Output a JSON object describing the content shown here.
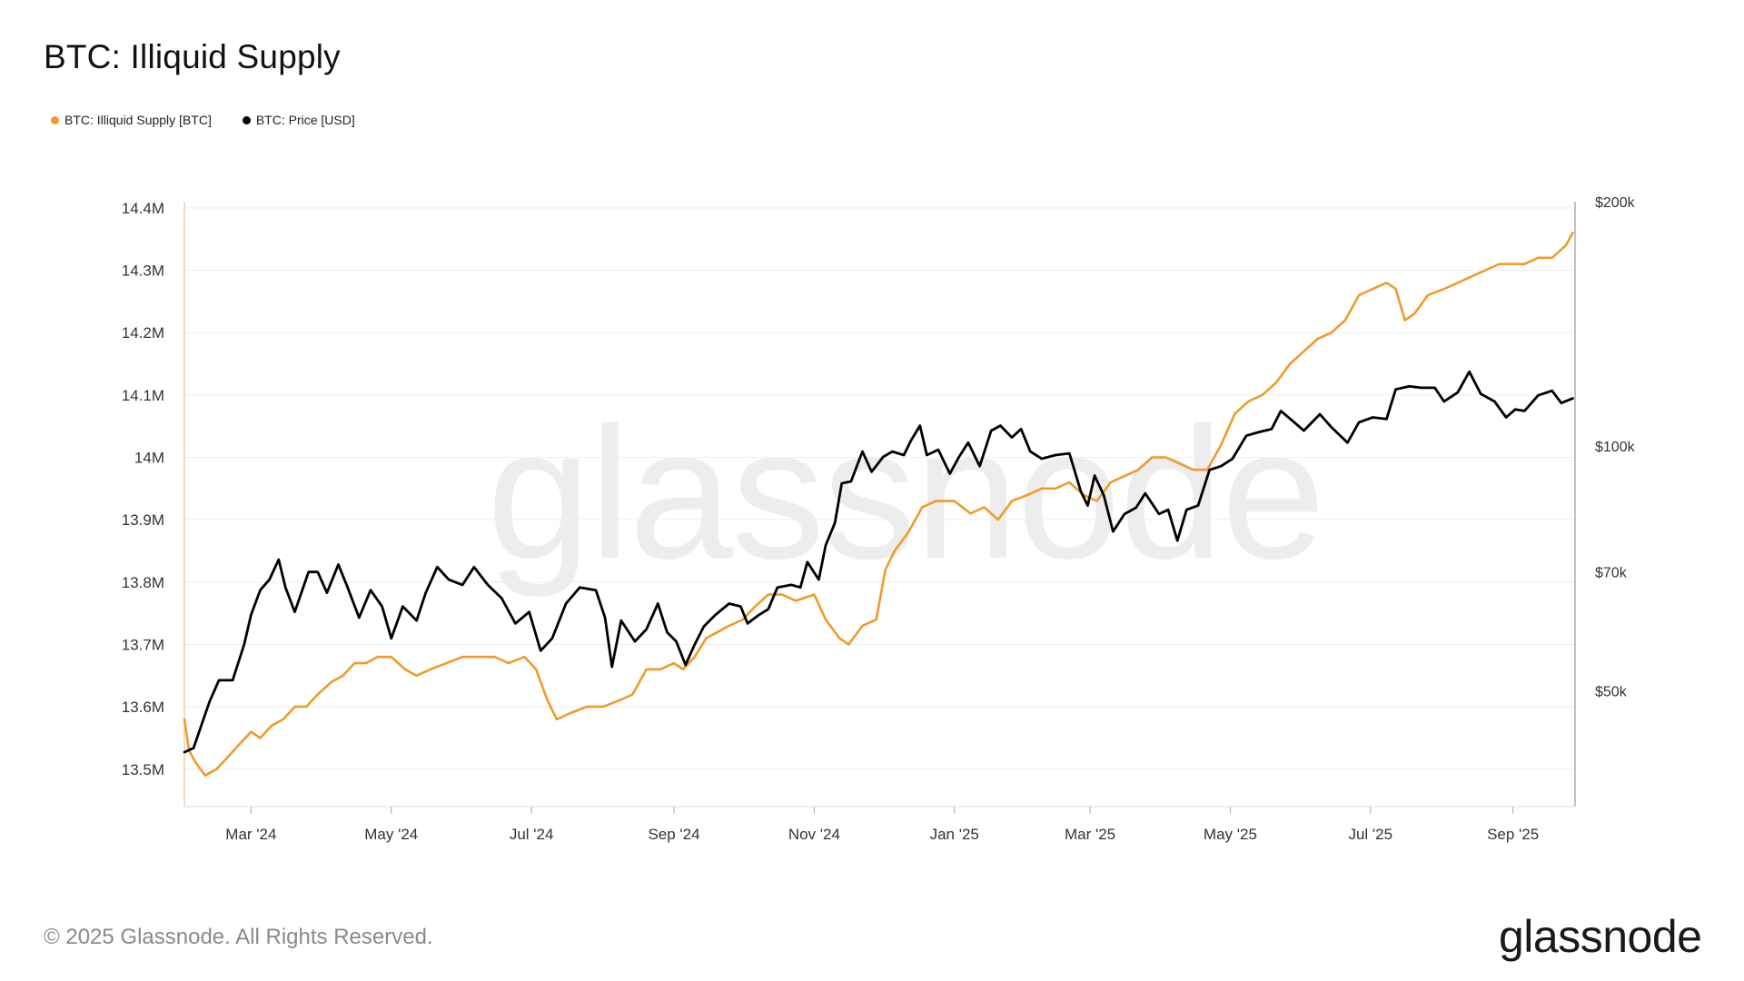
{
  "title": "BTC: Illiquid Supply",
  "copyright": "© 2025 Glassnode. All Rights Reserved.",
  "brand": "glassnode",
  "watermark": "glassnode",
  "colors": {
    "supply": "#f09a2c",
    "price": "#000000",
    "grid": "#eeeeee",
    "axis": "#999999"
  },
  "chart_data": {
    "type": "line",
    "title": "BTC: Illiquid Supply",
    "legend_position": "top-left",
    "grid": true,
    "x_start": "2024-02-01",
    "x_end": "2025-09-28",
    "x_ticks": [
      {
        "date": "2024-03-01",
        "label": "Mar '24"
      },
      {
        "date": "2024-05-01",
        "label": "May '24"
      },
      {
        "date": "2024-07-01",
        "label": "Jul '24"
      },
      {
        "date": "2024-09-01",
        "label": "Sep '24"
      },
      {
        "date": "2024-11-01",
        "label": "Nov '24"
      },
      {
        "date": "2025-01-01",
        "label": "Jan '25"
      },
      {
        "date": "2025-03-01",
        "label": "Mar '25"
      },
      {
        "date": "2025-05-01",
        "label": "May '25"
      },
      {
        "date": "2025-07-01",
        "label": "Jul '25"
      },
      {
        "date": "2025-09-01",
        "label": "Sep '25"
      }
    ],
    "y_left": {
      "range": [
        13.44,
        14.41
      ],
      "ticks": [
        {
          "value": 13.5,
          "label": "13.5M"
        },
        {
          "value": 13.6,
          "label": "13.6M"
        },
        {
          "value": 13.7,
          "label": "13.7M"
        },
        {
          "value": 13.8,
          "label": "13.8M"
        },
        {
          "value": 13.9,
          "label": "13.9M"
        },
        {
          "value": 14.0,
          "label": "14M"
        },
        {
          "value": 14.1,
          "label": "14.1M"
        },
        {
          "value": 14.2,
          "label": "14.2M"
        },
        {
          "value": 14.3,
          "label": "14.3M"
        },
        {
          "value": 14.4,
          "label": "14.4M"
        }
      ]
    },
    "y_right": {
      "scale": "log",
      "range": [
        36000,
        200000
      ],
      "ticks": [
        {
          "value": 50000,
          "label": "$50k"
        },
        {
          "value": 70000,
          "label": "$70k"
        },
        {
          "value": 100000,
          "label": "$100k"
        },
        {
          "value": 200000,
          "label": "$200k"
        }
      ]
    },
    "series": [
      {
        "name": "BTC: Illiquid Supply [BTC]",
        "axis": "left",
        "color": "#f09a2c",
        "points": [
          [
            "2024-02-01",
            13.58
          ],
          [
            "2024-02-03",
            13.53
          ],
          [
            "2024-02-06",
            13.51
          ],
          [
            "2024-02-10",
            13.49
          ],
          [
            "2024-02-15",
            13.5
          ],
          [
            "2024-02-20",
            13.52
          ],
          [
            "2024-02-25",
            13.54
          ],
          [
            "2024-03-01",
            13.56
          ],
          [
            "2024-03-05",
            13.55
          ],
          [
            "2024-03-10",
            13.57
          ],
          [
            "2024-03-15",
            13.58
          ],
          [
            "2024-03-20",
            13.6
          ],
          [
            "2024-03-25",
            13.6
          ],
          [
            "2024-03-30",
            13.62
          ],
          [
            "2024-04-05",
            13.64
          ],
          [
            "2024-04-10",
            13.65
          ],
          [
            "2024-04-15",
            13.67
          ],
          [
            "2024-04-20",
            13.67
          ],
          [
            "2024-04-25",
            13.68
          ],
          [
            "2024-05-01",
            13.68
          ],
          [
            "2024-05-07",
            13.66
          ],
          [
            "2024-05-12",
            13.65
          ],
          [
            "2024-05-18",
            13.66
          ],
          [
            "2024-05-25",
            13.67
          ],
          [
            "2024-06-01",
            13.68
          ],
          [
            "2024-06-08",
            13.68
          ],
          [
            "2024-06-15",
            13.68
          ],
          [
            "2024-06-21",
            13.67
          ],
          [
            "2024-06-28",
            13.68
          ],
          [
            "2024-07-03",
            13.66
          ],
          [
            "2024-07-08",
            13.61
          ],
          [
            "2024-07-12",
            13.58
          ],
          [
            "2024-07-18",
            13.59
          ],
          [
            "2024-07-25",
            13.6
          ],
          [
            "2024-08-01",
            13.6
          ],
          [
            "2024-08-08",
            13.61
          ],
          [
            "2024-08-14",
            13.62
          ],
          [
            "2024-08-20",
            13.66
          ],
          [
            "2024-08-26",
            13.66
          ],
          [
            "2024-09-01",
            13.67
          ],
          [
            "2024-09-05",
            13.66
          ],
          [
            "2024-09-10",
            13.68
          ],
          [
            "2024-09-15",
            13.71
          ],
          [
            "2024-09-20",
            13.72
          ],
          [
            "2024-09-25",
            13.73
          ],
          [
            "2024-10-01",
            13.74
          ],
          [
            "2024-10-06",
            13.76
          ],
          [
            "2024-10-12",
            13.78
          ],
          [
            "2024-10-18",
            13.78
          ],
          [
            "2024-10-24",
            13.77
          ],
          [
            "2024-11-01",
            13.78
          ],
          [
            "2024-11-06",
            13.74
          ],
          [
            "2024-11-12",
            13.71
          ],
          [
            "2024-11-16",
            13.7
          ],
          [
            "2024-11-22",
            13.73
          ],
          [
            "2024-11-28",
            13.74
          ],
          [
            "2024-12-02",
            13.82
          ],
          [
            "2024-12-06",
            13.85
          ],
          [
            "2024-12-12",
            13.88
          ],
          [
            "2024-12-18",
            13.92
          ],
          [
            "2024-12-24",
            13.93
          ],
          [
            "2025-01-01",
            13.93
          ],
          [
            "2025-01-08",
            13.91
          ],
          [
            "2025-01-14",
            13.92
          ],
          [
            "2025-01-20",
            13.9
          ],
          [
            "2025-01-26",
            13.93
          ],
          [
            "2025-02-02",
            13.94
          ],
          [
            "2025-02-08",
            13.95
          ],
          [
            "2025-02-14",
            13.95
          ],
          [
            "2025-02-20",
            13.96
          ],
          [
            "2025-02-26",
            13.94
          ],
          [
            "2025-03-04",
            13.93
          ],
          [
            "2025-03-10",
            13.96
          ],
          [
            "2025-03-16",
            13.97
          ],
          [
            "2025-03-22",
            13.98
          ],
          [
            "2025-03-28",
            14.0
          ],
          [
            "2025-04-03",
            14.0
          ],
          [
            "2025-04-09",
            13.99
          ],
          [
            "2025-04-15",
            13.98
          ],
          [
            "2025-04-21",
            13.98
          ],
          [
            "2025-04-27",
            14.02
          ],
          [
            "2025-05-03",
            14.07
          ],
          [
            "2025-05-09",
            14.09
          ],
          [
            "2025-05-15",
            14.1
          ],
          [
            "2025-05-21",
            14.12
          ],
          [
            "2025-05-27",
            14.15
          ],
          [
            "2025-06-02",
            14.17
          ],
          [
            "2025-06-08",
            14.19
          ],
          [
            "2025-06-14",
            14.2
          ],
          [
            "2025-06-20",
            14.22
          ],
          [
            "2025-06-26",
            14.26
          ],
          [
            "2025-07-02",
            14.27
          ],
          [
            "2025-07-08",
            14.28
          ],
          [
            "2025-07-12",
            14.27
          ],
          [
            "2025-07-16",
            14.22
          ],
          [
            "2025-07-20",
            14.23
          ],
          [
            "2025-07-26",
            14.26
          ],
          [
            "2025-08-02",
            14.27
          ],
          [
            "2025-08-08",
            14.28
          ],
          [
            "2025-08-14",
            14.29
          ],
          [
            "2025-08-20",
            14.3
          ],
          [
            "2025-08-26",
            14.31
          ],
          [
            "2025-09-01",
            14.31
          ],
          [
            "2025-09-06",
            14.31
          ],
          [
            "2025-09-12",
            14.32
          ],
          [
            "2025-09-18",
            14.32
          ],
          [
            "2025-09-24",
            14.34
          ],
          [
            "2025-09-27",
            14.36
          ]
        ]
      },
      {
        "name": "BTC: Price [USD]",
        "axis": "right",
        "color": "#000000",
        "points": [
          [
            "2024-02-01",
            42000
          ],
          [
            "2024-02-05",
            42500
          ],
          [
            "2024-02-08",
            45000
          ],
          [
            "2024-02-12",
            48500
          ],
          [
            "2024-02-16",
            51500
          ],
          [
            "2024-02-22",
            51500
          ],
          [
            "2024-02-27",
            57000
          ],
          [
            "2024-03-01",
            62000
          ],
          [
            "2024-03-05",
            66500
          ],
          [
            "2024-03-09",
            68500
          ],
          [
            "2024-03-13",
            72500
          ],
          [
            "2024-03-16",
            67000
          ],
          [
            "2024-03-20",
            62500
          ],
          [
            "2024-03-26",
            70000
          ],
          [
            "2024-03-30",
            70000
          ],
          [
            "2024-04-03",
            66000
          ],
          [
            "2024-04-08",
            71500
          ],
          [
            "2024-04-12",
            67000
          ],
          [
            "2024-04-17",
            61500
          ],
          [
            "2024-04-22",
            66500
          ],
          [
            "2024-04-27",
            63500
          ],
          [
            "2024-05-01",
            58000
          ],
          [
            "2024-05-06",
            63500
          ],
          [
            "2024-05-12",
            61000
          ],
          [
            "2024-05-16",
            66000
          ],
          [
            "2024-05-21",
            71000
          ],
          [
            "2024-05-26",
            68500
          ],
          [
            "2024-06-01",
            67500
          ],
          [
            "2024-06-06",
            71000
          ],
          [
            "2024-06-12",
            67500
          ],
          [
            "2024-06-18",
            65000
          ],
          [
            "2024-06-24",
            60500
          ],
          [
            "2024-06-30",
            62500
          ],
          [
            "2024-07-05",
            56000
          ],
          [
            "2024-07-10",
            58000
          ],
          [
            "2024-07-16",
            64000
          ],
          [
            "2024-07-22",
            67000
          ],
          [
            "2024-07-29",
            66500
          ],
          [
            "2024-08-02",
            61500
          ],
          [
            "2024-08-05",
            53500
          ],
          [
            "2024-08-09",
            61000
          ],
          [
            "2024-08-15",
            57500
          ],
          [
            "2024-08-20",
            59500
          ],
          [
            "2024-08-25",
            64000
          ],
          [
            "2024-08-29",
            59000
          ],
          [
            "2024-09-02",
            57500
          ],
          [
            "2024-09-06",
            53800
          ],
          [
            "2024-09-10",
            57000
          ],
          [
            "2024-09-14",
            60000
          ],
          [
            "2024-09-19",
            62000
          ],
          [
            "2024-09-25",
            64000
          ],
          [
            "2024-09-30",
            63500
          ],
          [
            "2024-10-03",
            60500
          ],
          [
            "2024-10-08",
            62000
          ],
          [
            "2024-10-12",
            63000
          ],
          [
            "2024-10-16",
            67000
          ],
          [
            "2024-10-22",
            67500
          ],
          [
            "2024-10-26",
            67000
          ],
          [
            "2024-10-29",
            72000
          ],
          [
            "2024-11-03",
            68500
          ],
          [
            "2024-11-06",
            75500
          ],
          [
            "2024-11-10",
            80500
          ],
          [
            "2024-11-13",
            90000
          ],
          [
            "2024-11-17",
            90500
          ],
          [
            "2024-11-22",
            98500
          ],
          [
            "2024-11-26",
            93000
          ],
          [
            "2024-12-01",
            97000
          ],
          [
            "2024-12-05",
            98500
          ],
          [
            "2024-12-10",
            97500
          ],
          [
            "2024-12-13",
            101500
          ],
          [
            "2024-12-17",
            106000
          ],
          [
            "2024-12-20",
            97500
          ],
          [
            "2024-12-25",
            99000
          ],
          [
            "2024-12-30",
            92500
          ],
          [
            "2025-01-03",
            97000
          ],
          [
            "2025-01-07",
            101000
          ],
          [
            "2025-01-12",
            94500
          ],
          [
            "2025-01-17",
            104500
          ],
          [
            "2025-01-21",
            106000
          ],
          [
            "2025-01-26",
            102500
          ],
          [
            "2025-01-30",
            105000
          ],
          [
            "2025-02-03",
            98500
          ],
          [
            "2025-02-08",
            96500
          ],
          [
            "2025-02-14",
            97500
          ],
          [
            "2025-02-20",
            98000
          ],
          [
            "2025-02-25",
            88000
          ],
          [
            "2025-02-28",
            84500
          ],
          [
            "2025-03-03",
            92000
          ],
          [
            "2025-03-07",
            87000
          ],
          [
            "2025-03-11",
            78500
          ],
          [
            "2025-03-16",
            82500
          ],
          [
            "2025-03-21",
            84000
          ],
          [
            "2025-03-25",
            87500
          ],
          [
            "2025-03-31",
            82500
          ],
          [
            "2025-04-04",
            83500
          ],
          [
            "2025-04-08",
            76500
          ],
          [
            "2025-04-12",
            83500
          ],
          [
            "2025-04-17",
            84500
          ],
          [
            "2025-04-22",
            93500
          ],
          [
            "2025-04-27",
            94500
          ],
          [
            "2025-05-02",
            96500
          ],
          [
            "2025-05-08",
            103000
          ],
          [
            "2025-05-13",
            104000
          ],
          [
            "2025-05-19",
            105000
          ],
          [
            "2025-05-23",
            110500
          ],
          [
            "2025-05-28",
            107500
          ],
          [
            "2025-06-02",
            104500
          ],
          [
            "2025-06-09",
            109500
          ],
          [
            "2025-06-14",
            105500
          ],
          [
            "2025-06-21",
            101000
          ],
          [
            "2025-06-26",
            107000
          ],
          [
            "2025-07-02",
            108500
          ],
          [
            "2025-07-08",
            108000
          ],
          [
            "2025-07-12",
            117500
          ],
          [
            "2025-07-18",
            118500
          ],
          [
            "2025-07-23",
            118000
          ],
          [
            "2025-07-29",
            118000
          ],
          [
            "2025-08-02",
            113500
          ],
          [
            "2025-08-08",
            116500
          ],
          [
            "2025-08-13",
            123500
          ],
          [
            "2025-08-18",
            116000
          ],
          [
            "2025-08-24",
            113500
          ],
          [
            "2025-08-29",
            108500
          ],
          [
            "2025-09-02",
            111000
          ],
          [
            "2025-09-06",
            110500
          ],
          [
            "2025-09-12",
            115500
          ],
          [
            "2025-09-18",
            117000
          ],
          [
            "2025-09-22",
            113000
          ],
          [
            "2025-09-27",
            114500
          ]
        ]
      }
    ]
  }
}
